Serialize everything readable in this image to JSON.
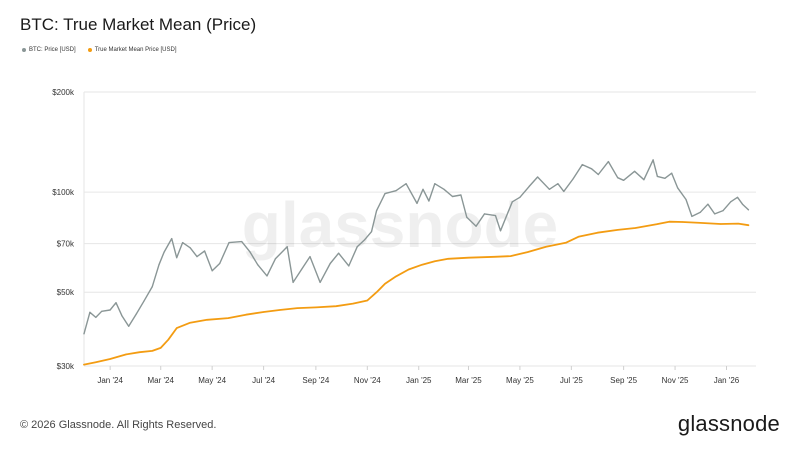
{
  "chart_data": {
    "type": "line",
    "title": "BTC: True Market Mean (Price)",
    "y_scale": "log",
    "ylim": [
      30000,
      200000
    ],
    "xlim": [
      "2023-12-01",
      "2026-02-05"
    ],
    "y_ticks": [
      {
        "value": 30000,
        "label": "$30k"
      },
      {
        "value": 50000,
        "label": "$50k"
      },
      {
        "value": 70000,
        "label": "$70k"
      },
      {
        "value": 100000,
        "label": "$100k"
      },
      {
        "value": 200000,
        "label": "$200k"
      }
    ],
    "x_ticks": [
      {
        "date": "2024-01-01",
        "label": "Jan '24"
      },
      {
        "date": "2024-03-01",
        "label": "Mar '24"
      },
      {
        "date": "2024-05-01",
        "label": "May '24"
      },
      {
        "date": "2024-07-01",
        "label": "Jul '24"
      },
      {
        "date": "2024-09-01",
        "label": "Sep '24"
      },
      {
        "date": "2024-11-01",
        "label": "Nov '24"
      },
      {
        "date": "2025-01-01",
        "label": "Jan '25"
      },
      {
        "date": "2025-03-01",
        "label": "Mar '25"
      },
      {
        "date": "2025-05-01",
        "label": "May '25"
      },
      {
        "date": "2025-07-01",
        "label": "Jul '25"
      },
      {
        "date": "2025-09-01",
        "label": "Sep '25"
      },
      {
        "date": "2025-11-01",
        "label": "Nov '25"
      },
      {
        "date": "2026-01-01",
        "label": "Jan '26"
      }
    ],
    "grid": "horizontal",
    "legend_position": "top-left",
    "series": [
      {
        "name": "BTC: Price [USD]",
        "color": "#8a9696",
        "points": [
          [
            "2023-12-01",
            37500
          ],
          [
            "2023-12-08",
            43500
          ],
          [
            "2023-12-15",
            42000
          ],
          [
            "2023-12-22",
            43800
          ],
          [
            "2024-01-01",
            44200
          ],
          [
            "2024-01-08",
            46500
          ],
          [
            "2024-01-15",
            42500
          ],
          [
            "2024-01-23",
            39500
          ],
          [
            "2024-02-01",
            43000
          ],
          [
            "2024-02-10",
            47000
          ],
          [
            "2024-02-20",
            52000
          ],
          [
            "2024-02-28",
            60500
          ],
          [
            "2024-03-05",
            66000
          ],
          [
            "2024-03-14",
            72500
          ],
          [
            "2024-03-20",
            63500
          ],
          [
            "2024-03-27",
            70500
          ],
          [
            "2024-04-05",
            68000
          ],
          [
            "2024-04-13",
            64000
          ],
          [
            "2024-04-22",
            66500
          ],
          [
            "2024-05-01",
            58000
          ],
          [
            "2024-05-10",
            61000
          ],
          [
            "2024-05-21",
            70500
          ],
          [
            "2024-06-05",
            71000
          ],
          [
            "2024-06-15",
            66000
          ],
          [
            "2024-06-24",
            60500
          ],
          [
            "2024-07-05",
            56000
          ],
          [
            "2024-07-15",
            63000
          ],
          [
            "2024-07-29",
            68500
          ],
          [
            "2024-08-05",
            53500
          ],
          [
            "2024-08-15",
            58500
          ],
          [
            "2024-08-25",
            64000
          ],
          [
            "2024-09-06",
            53500
          ],
          [
            "2024-09-18",
            61000
          ],
          [
            "2024-09-28",
            65500
          ],
          [
            "2024-10-10",
            60000
          ],
          [
            "2024-10-20",
            68500
          ],
          [
            "2024-10-29",
            72000
          ],
          [
            "2024-11-06",
            76000
          ],
          [
            "2024-11-12",
            88000
          ],
          [
            "2024-11-22",
            99000
          ],
          [
            "2024-12-05",
            101000
          ],
          [
            "2024-12-17",
            106000
          ],
          [
            "2024-12-30",
            92500
          ],
          [
            "2025-01-06",
            102000
          ],
          [
            "2025-01-13",
            94000
          ],
          [
            "2025-01-20",
            106000
          ],
          [
            "2025-01-31",
            102000
          ],
          [
            "2025-02-10",
            97000
          ],
          [
            "2025-02-20",
            98000
          ],
          [
            "2025-02-27",
            84000
          ],
          [
            "2025-03-10",
            79000
          ],
          [
            "2025-03-20",
            86000
          ],
          [
            "2025-04-02",
            85000
          ],
          [
            "2025-04-08",
            76500
          ],
          [
            "2025-04-22",
            93500
          ],
          [
            "2025-05-01",
            96500
          ],
          [
            "2025-05-12",
            104000
          ],
          [
            "2025-05-22",
            111000
          ],
          [
            "2025-06-05",
            102000
          ],
          [
            "2025-06-15",
            106000
          ],
          [
            "2025-06-22",
            100500
          ],
          [
            "2025-07-03",
            109500
          ],
          [
            "2025-07-14",
            121000
          ],
          [
            "2025-07-25",
            117500
          ],
          [
            "2025-08-02",
            113000
          ],
          [
            "2025-08-14",
            123500
          ],
          [
            "2025-08-25",
            110500
          ],
          [
            "2025-09-01",
            108500
          ],
          [
            "2025-09-14",
            115500
          ],
          [
            "2025-09-25",
            109000
          ],
          [
            "2025-10-06",
            125000
          ],
          [
            "2025-10-11",
            111500
          ],
          [
            "2025-10-20",
            110000
          ],
          [
            "2025-10-28",
            114000
          ],
          [
            "2025-11-04",
            103000
          ],
          [
            "2025-11-14",
            95000
          ],
          [
            "2025-11-21",
            84500
          ],
          [
            "2025-12-01",
            87000
          ],
          [
            "2025-12-10",
            92000
          ],
          [
            "2025-12-18",
            86000
          ],
          [
            "2025-12-28",
            88000
          ],
          [
            "2026-01-06",
            93500
          ],
          [
            "2026-01-14",
            96500
          ],
          [
            "2026-01-20",
            92000
          ],
          [
            "2026-01-27",
            88500
          ]
        ]
      },
      {
        "name": "True Market Mean Price [USD]",
        "color": "#f39c12",
        "points": [
          [
            "2023-12-01",
            30300
          ],
          [
            "2023-12-15",
            30800
          ],
          [
            "2024-01-01",
            31500
          ],
          [
            "2024-01-20",
            32500
          ],
          [
            "2024-02-05",
            33000
          ],
          [
            "2024-02-20",
            33300
          ],
          [
            "2024-03-01",
            34000
          ],
          [
            "2024-03-10",
            36000
          ],
          [
            "2024-03-20",
            39000
          ],
          [
            "2024-04-05",
            40500
          ],
          [
            "2024-04-25",
            41300
          ],
          [
            "2024-05-20",
            41800
          ],
          [
            "2024-06-10",
            42800
          ],
          [
            "2024-07-01",
            43600
          ],
          [
            "2024-07-20",
            44200
          ],
          [
            "2024-08-10",
            44800
          ],
          [
            "2024-09-01",
            45000
          ],
          [
            "2024-09-25",
            45400
          ],
          [
            "2024-10-15",
            46200
          ],
          [
            "2024-11-01",
            47200
          ],
          [
            "2024-11-12",
            50000
          ],
          [
            "2024-11-22",
            53000
          ],
          [
            "2024-12-05",
            55800
          ],
          [
            "2024-12-20",
            58500
          ],
          [
            "2025-01-05",
            60500
          ],
          [
            "2025-01-20",
            62000
          ],
          [
            "2025-02-05",
            63000
          ],
          [
            "2025-03-01",
            63500
          ],
          [
            "2025-04-01",
            63900
          ],
          [
            "2025-04-20",
            64200
          ],
          [
            "2025-05-10",
            66000
          ],
          [
            "2025-06-01",
            68500
          ],
          [
            "2025-06-25",
            70500
          ],
          [
            "2025-07-10",
            73500
          ],
          [
            "2025-08-01",
            75500
          ],
          [
            "2025-08-25",
            77000
          ],
          [
            "2025-09-15",
            78000
          ],
          [
            "2025-10-10",
            80000
          ],
          [
            "2025-10-25",
            81500
          ],
          [
            "2025-11-10",
            81300
          ],
          [
            "2025-12-01",
            80800
          ],
          [
            "2025-12-25",
            80200
          ],
          [
            "2026-01-15",
            80400
          ],
          [
            "2026-01-27",
            79500
          ]
        ]
      }
    ]
  },
  "watermark": "glassnode",
  "footer": "© 2026 Glassnode. All Rights Reserved.",
  "brand": "glassnode"
}
